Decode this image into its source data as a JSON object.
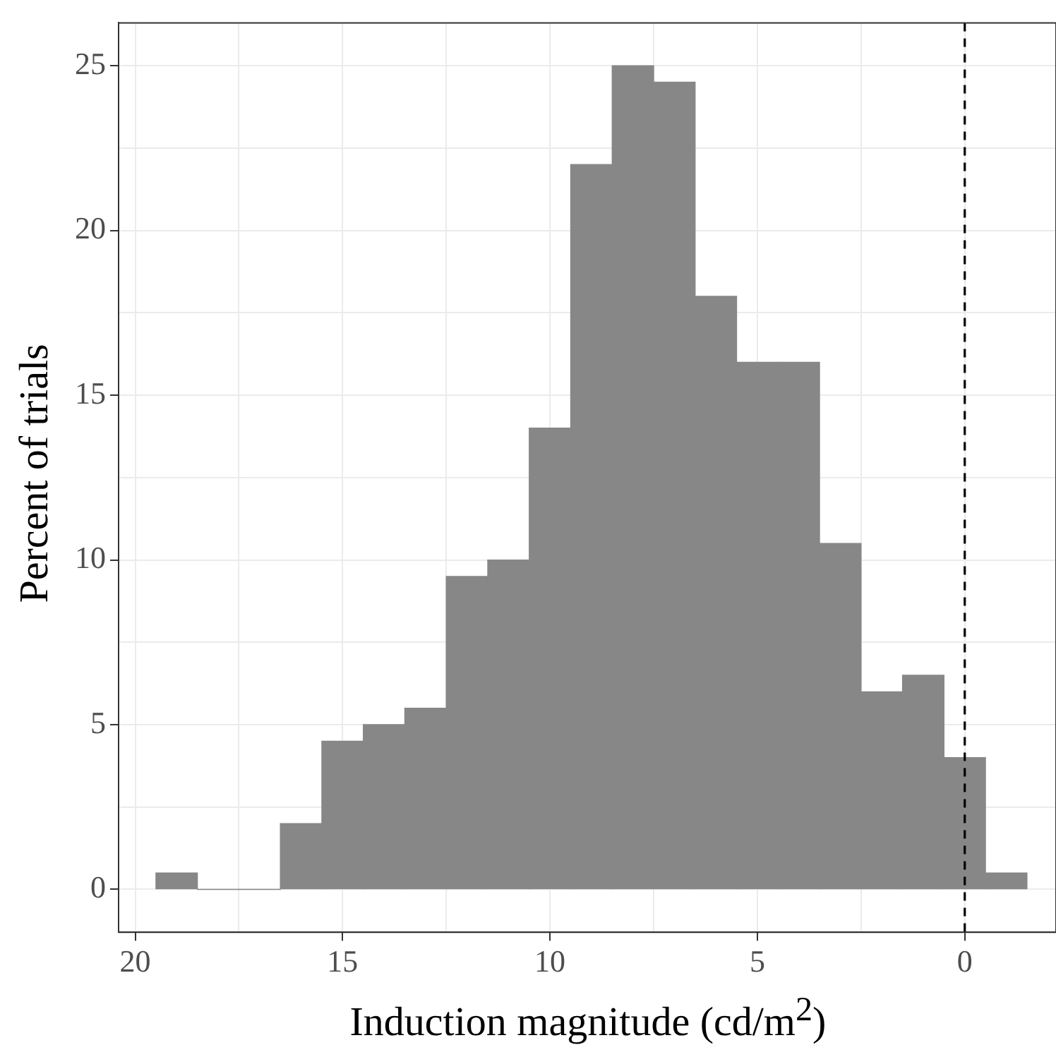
{
  "chart_data": {
    "type": "histogram",
    "xlabel": "Induction magnitude (cd/m$^{2}$)",
    "ylabel": "Percent of trials",
    "bins": [
      19.5,
      18.5,
      17.5,
      16.5,
      15.5,
      14.5,
      13.5,
      12.5,
      11.5,
      10.5,
      9.5,
      8.5,
      7.5,
      6.5,
      5.5,
      4.5,
      3.5,
      2.5,
      1.5,
      0.5,
      -0.5,
      -1.5
    ],
    "values": [
      0.5,
      0,
      0,
      2,
      4.5,
      5,
      5.5,
      9.5,
      10,
      14,
      22,
      25,
      24.5,
      18,
      16,
      16,
      10.5,
      6,
      6.5,
      4,
      0.5
    ],
    "color": "#878787",
    "xlim": [
      20.4,
      -2.2
    ],
    "ylim": [
      -1.3,
      26.3
    ],
    "xticks": [
      20,
      {
        "value": 17.5,
        "label": null
      },
      15,
      {
        "value": 12.5,
        "label": null
      },
      10,
      {
        "value": 7.5,
        "label": null
      },
      5,
      {
        "value": 2.5,
        "label": null
      },
      0
    ],
    "yticks": [
      0,
      {
        "value": 2.5,
        "label": null
      },
      5,
      {
        "value": 7.5,
        "label": null
      },
      10,
      {
        "value": 12.5,
        "label": null
      },
      15,
      {
        "value": 17.5,
        "label": null
      },
      20,
      {
        "value": 22.5,
        "label": null
      },
      25
    ],
    "grid": true,
    "ref_lines": [
      {
        "axis": "x",
        "value": 0,
        "color": "#000000",
        "line_style": "dashed"
      }
    ],
    "legend": false
  }
}
